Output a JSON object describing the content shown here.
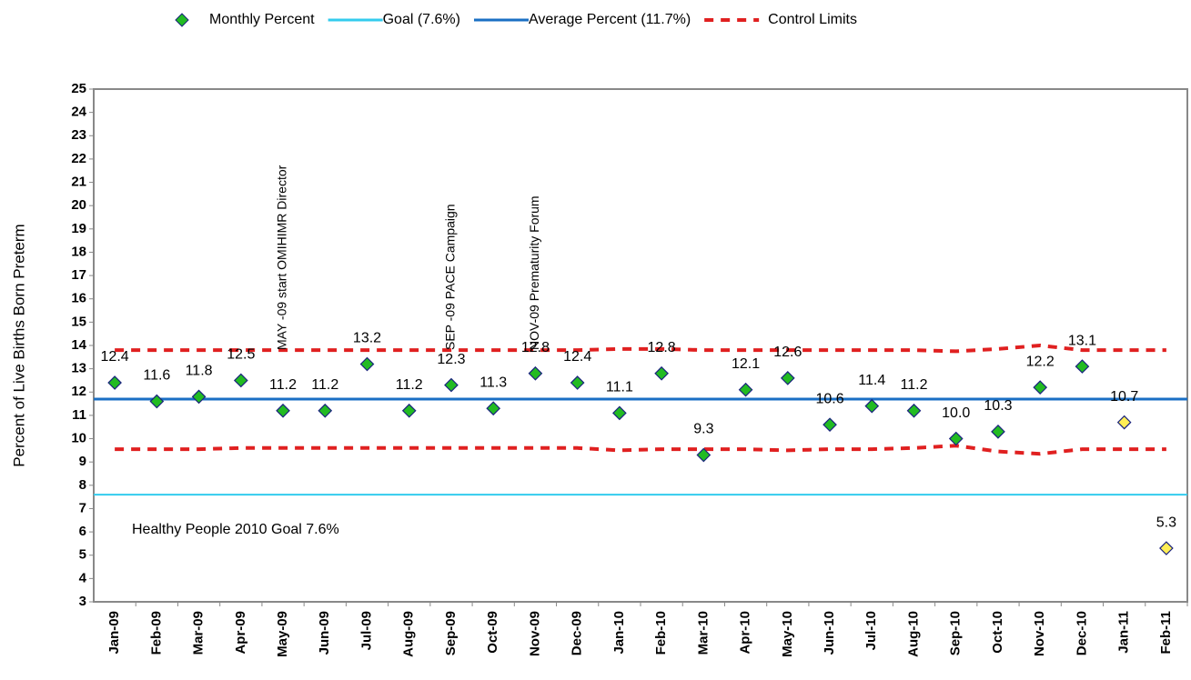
{
  "chart_data": {
    "type": "line",
    "y_label": "Percent of Live Births Born Preterm",
    "categories": [
      "Jan-09",
      "Feb-09",
      "Mar-09",
      "Apr-09",
      "May-09",
      "Jun-09",
      "Jul-09",
      "Aug-09",
      "Sep-09",
      "Oct-09",
      "Nov-09",
      "Dec-09",
      "Jan-10",
      "Feb-10",
      "Mar-10",
      "Apr-10",
      "May-10",
      "Jun-10",
      "Jul-10",
      "Aug-10",
      "Sep-10",
      "Oct-10",
      "Nov-10",
      "Dec-10",
      "Jan-11",
      "Feb-11"
    ],
    "series": [
      {
        "name": "Monthly Percent",
        "color": "#22bb22",
        "values": [
          12.4,
          11.6,
          11.8,
          12.5,
          11.2,
          11.2,
          13.2,
          11.2,
          12.3,
          11.3,
          12.8,
          12.4,
          11.1,
          12.8,
          9.3,
          12.1,
          12.6,
          10.6,
          11.4,
          11.2,
          10.0,
          10.3,
          12.2,
          13.1,
          10.7,
          5.3
        ],
        "value_labels": [
          "12.4",
          "11.6",
          "11.8",
          "12.5",
          "11.2",
          "11.2",
          "13.2",
          "11.2",
          "12.3",
          "11.3",
          "12.8",
          "12.4",
          "11.1",
          "12.8",
          "9.3",
          "12.1",
          "12.6",
          "10.6",
          "11.4",
          "11.2",
          "10.0",
          "10.3",
          "12.2",
          "13.1",
          "10.7",
          "5.3"
        ],
        "colors": [
          "#22bb22",
          "#22bb22",
          "#22bb22",
          "#22bb22",
          "#22bb22",
          "#22bb22",
          "#22bb22",
          "#22bb22",
          "#22bb22",
          "#22bb22",
          "#22bb22",
          "#22bb22",
          "#22bb22",
          "#22bb22",
          "#22bb22",
          "#22bb22",
          "#22bb22",
          "#22bb22",
          "#22bb22",
          "#22bb22",
          "#22bb22",
          "#22bb22",
          "#22bb22",
          "#22bb22",
          "#ffee55",
          "#ffee55"
        ]
      }
    ],
    "reference_lines": [
      {
        "name": "Goal (7.6%)",
        "color": "#33ccee",
        "value": 7.6
      },
      {
        "name": "Average Percent (11.7%)",
        "color": "#1a6fc4",
        "value": 11.7
      }
    ],
    "control_limits": {
      "name": "Control Limits",
      "color": "#e02020",
      "upper": [
        13.8,
        13.8,
        13.8,
        13.8,
        13.8,
        13.8,
        13.8,
        13.8,
        13.8,
        13.8,
        13.8,
        13.8,
        13.85,
        13.85,
        13.8,
        13.8,
        13.8,
        13.8,
        13.8,
        13.8,
        13.75,
        13.85,
        14.0,
        13.8,
        13.8,
        13.8
      ],
      "lower": [
        9.55,
        9.55,
        9.55,
        9.6,
        9.6,
        9.6,
        9.6,
        9.6,
        9.6,
        9.6,
        9.6,
        9.6,
        9.5,
        9.55,
        9.55,
        9.55,
        9.5,
        9.55,
        9.55,
        9.6,
        9.7,
        9.45,
        9.35,
        9.55,
        9.55,
        9.55
      ]
    },
    "annotations": [
      {
        "text": "MAY -09 start OMIHIMR Director",
        "category": 4
      },
      {
        "text": "SEP -09 PACE Campaign",
        "category": 8
      },
      {
        "text": "NOV-09 Prematurity Forum",
        "category": 10
      }
    ],
    "goal_note": "Healthy People 2010 Goal 7.6%",
    "ylim": [
      3,
      25
    ],
    "yticks": [
      3,
      4,
      5,
      6,
      7,
      8,
      9,
      10,
      11,
      12,
      13,
      14,
      15,
      16,
      17,
      18,
      19,
      20,
      21,
      22,
      23,
      24,
      25
    ]
  }
}
